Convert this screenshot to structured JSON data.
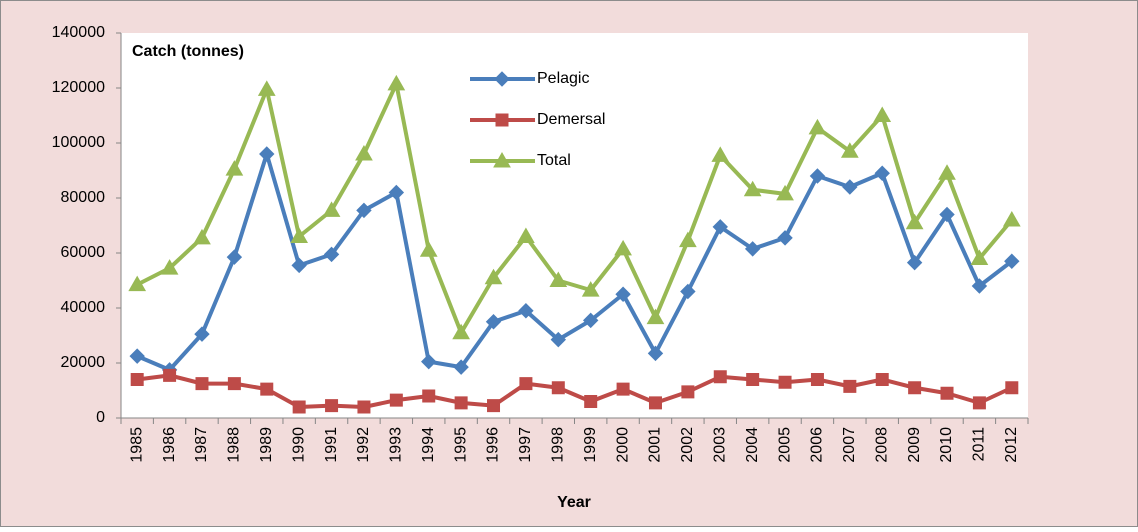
{
  "chart_data": {
    "type": "line",
    "title": "Catch (tonnes)",
    "x_label": "Year",
    "categories": [
      "1985",
      "1986",
      "1987",
      "1988",
      "1989",
      "1990",
      "1991",
      "1992",
      "1993",
      "1994",
      "1995",
      "1996",
      "1997",
      "1998",
      "1999",
      "2000",
      "2001",
      "2002",
      "2003",
      "2004",
      "2005",
      "2006",
      "2007",
      "2008",
      "2009",
      "2010",
      "2011",
      "2012"
    ],
    "series": [
      {
        "name": "Pelagic",
        "color": "#4a7ebb",
        "marker": "diamond",
        "values": [
          22500,
          17500,
          30500,
          58500,
          96000,
          55500,
          59500,
          75500,
          82000,
          20500,
          18500,
          35000,
          39000,
          28500,
          35500,
          45000,
          23500,
          46000,
          69500,
          61500,
          65500,
          88000,
          84000,
          89000,
          56500,
          74000,
          48000,
          57000
        ]
      },
      {
        "name": "Demersal",
        "color": "#be4b48",
        "marker": "square",
        "values": [
          14000,
          15500,
          12500,
          12500,
          10500,
          4000,
          4500,
          4000,
          6500,
          8000,
          5500,
          4500,
          12500,
          11000,
          6000,
          10500,
          5500,
          9500,
          15000,
          14000,
          13000,
          14000,
          11500,
          14000,
          11000,
          9000,
          5500,
          11000
        ]
      },
      {
        "name": "Total",
        "color": "#98b954",
        "marker": "triangle",
        "values": [
          48500,
          54500,
          65500,
          90500,
          119500,
          66000,
          75500,
          96000,
          121500,
          61000,
          31000,
          51000,
          66000,
          50000,
          46500,
          61500,
          36500,
          64500,
          95500,
          83000,
          81500,
          105500,
          97000,
          110000,
          71000,
          89000,
          58000,
          72000
        ]
      }
    ],
    "ylim": [
      0,
      140000
    ],
    "yticks": [
      0,
      20000,
      40000,
      60000,
      80000,
      100000,
      120000,
      140000
    ],
    "grid": false,
    "legend": "top"
  }
}
